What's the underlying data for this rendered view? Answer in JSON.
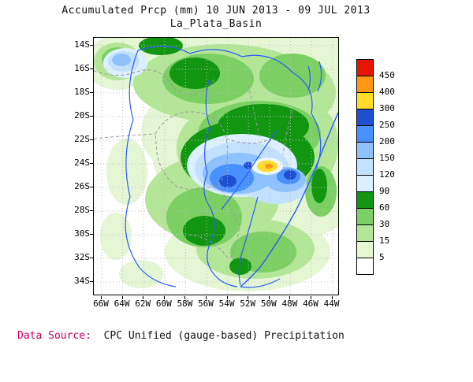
{
  "title": "Accumulated Prcp (mm) 10 JUN 2013 - 09 JUL 2013",
  "subtitle": "La_Plata_Basin",
  "axes": {
    "lat_ticks": [
      "14S",
      "16S",
      "18S",
      "20S",
      "22S",
      "24S",
      "26S",
      "28S",
      "30S",
      "32S",
      "34S"
    ],
    "lon_ticks": [
      "66W",
      "64W",
      "62W",
      "60W",
      "58W",
      "56W",
      "54W",
      "52W",
      "50W",
      "48W",
      "46W",
      "44W"
    ]
  },
  "legend": {
    "tick_labels": [
      "450",
      "400",
      "300",
      "250",
      "200",
      "150",
      "120",
      "90",
      "60",
      "30",
      "15",
      "5"
    ],
    "band_colors_top_to_bottom": [
      "#e61400",
      "#ff9614",
      "#ffdc28",
      "#1e50d2",
      "#4890ff",
      "#8ec2ff",
      "#c2e0ff",
      "#dcf0ff",
      "#129612",
      "#7ccf63",
      "#b4e698",
      "#e4f6d4",
      "#ffffff"
    ]
  },
  "footer": {
    "label": "Data Source:",
    "text": "CPC Unified (gauge-based) Precipitation"
  },
  "colors": {
    "footer_label": "#cc0066",
    "plot_border": "#000000",
    "grid": "#c0c0c0",
    "country_border": "#999999",
    "river": "#2b5cff"
  },
  "chart_data": {
    "type": "heatmap",
    "title": "Accumulated Prcp (mm) 10 JUN 2013 - 09 JUL 2013",
    "region": "La_Plata_Basin",
    "units": "mm",
    "lat_range": [
      "14S",
      "34S"
    ],
    "lon_range": [
      "66W",
      "44W"
    ],
    "legend_bins_mm": [
      5,
      15,
      30,
      60,
      90,
      120,
      150,
      200,
      250,
      300,
      400,
      450
    ],
    "notes": "Accumulated precipitation shading over the La Plata Basin; maximum core 300-450 mm (yellow/orange) near 24S 51W surrounded by 120-300 mm blues, 5-120 mm greens elsewhere, <5 mm white in the west"
  }
}
